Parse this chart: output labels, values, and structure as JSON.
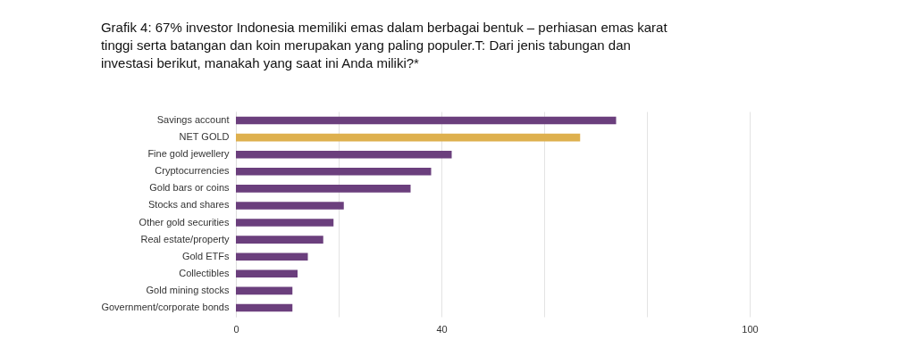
{
  "chart_data": {
    "type": "bar",
    "orientation": "horizontal",
    "title": "Grafik 4: 67% investor Indonesia memiliki emas dalam berbagai bentuk – perhiasan emas karat tinggi serta batangan dan koin merupakan yang paling populer.T: Dari jenis tabungan dan investasi berikut, manakah yang saat ini Anda miliki?*",
    "categories": [
      "Savings account",
      "NET GOLD",
      "Fine gold jewellery",
      "Cryptocurrencies",
      "Gold bars or coins",
      "Stocks and shares",
      "Other gold securities",
      "Real estate/property",
      "Gold ETFs",
      "Collectibles",
      "Gold mining stocks",
      "Government/corporate bonds"
    ],
    "values": [
      74,
      67,
      42,
      38,
      34,
      21,
      19,
      17,
      14,
      12,
      11,
      11
    ],
    "colors": [
      "#6b3f7d",
      "#deb04e",
      "#6b3f7d",
      "#6b3f7d",
      "#6b3f7d",
      "#6b3f7d",
      "#6b3f7d",
      "#6b3f7d",
      "#6b3f7d",
      "#6b3f7d",
      "#6b3f7d",
      "#6b3f7d"
    ],
    "xlim": [
      0,
      100
    ],
    "xticks": [
      0,
      {
        "value": 20,
        "label": null
      },
      40,
      {
        "value": 60,
        "label": null
      },
      {
        "value": 80,
        "label": null
      },
      100
    ],
    "grid": "x"
  }
}
